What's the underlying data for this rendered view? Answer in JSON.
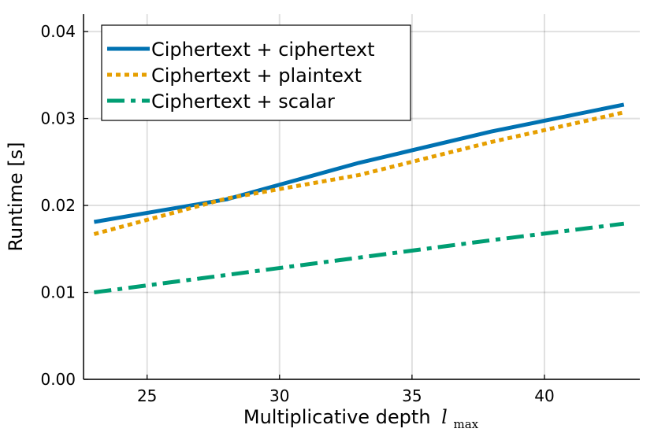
{
  "chart_data": {
    "type": "line",
    "xlabel": "Multiplicative depth",
    "xlabel_math": "l",
    "xlabel_sub": "max",
    "ylabel": "Runtime [s]",
    "xlim": [
      22.6,
      43.6
    ],
    "ylim": [
      0.0,
      0.042
    ],
    "xticks": [
      25,
      30,
      35,
      40
    ],
    "xtick_labels": [
      "25",
      "30",
      "35",
      "40"
    ],
    "yticks": [
      0.0,
      0.01,
      0.02,
      0.03,
      0.04
    ],
    "ytick_labels": [
      "0.00",
      "0.01",
      "0.02",
      "0.03",
      "0.04"
    ],
    "grid": true,
    "legend_position": "top-left",
    "x": [
      23,
      28,
      33,
      38,
      43
    ],
    "series": [
      {
        "name": "Ciphertext + ciphertext",
        "values": [
          0.0181,
          0.0207,
          0.0249,
          0.0285,
          0.0316
        ],
        "color": "#0072b2",
        "style": "solid"
      },
      {
        "name": "Ciphertext + plaintext",
        "values": [
          0.0167,
          0.0208,
          0.0235,
          0.0273,
          0.0307
        ],
        "color": "#e69f00",
        "style": "dot"
      },
      {
        "name": "Ciphertext + scalar",
        "values": [
          0.01,
          0.012,
          0.014,
          0.016,
          0.0179
        ],
        "color": "#009e73",
        "style": "dashdot"
      }
    ]
  }
}
